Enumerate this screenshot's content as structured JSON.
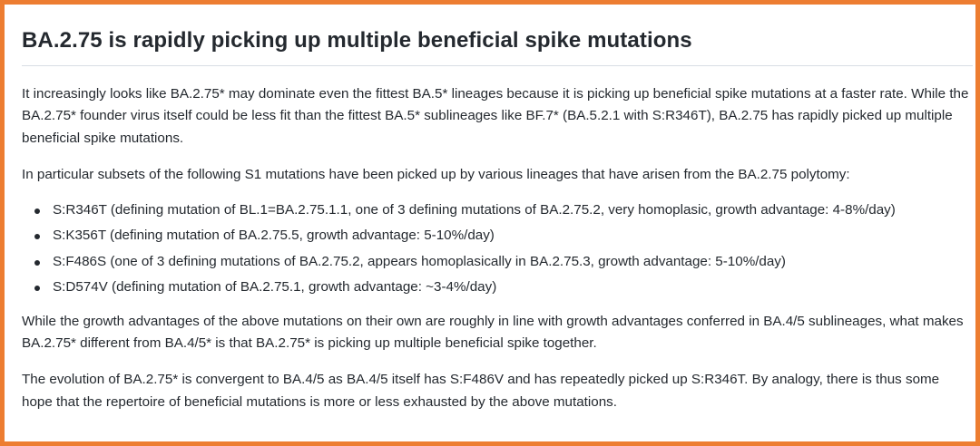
{
  "article": {
    "title": "BA.2.75 is rapidly picking up multiple beneficial spike mutations",
    "paragraph_1": "It increasingly looks like BA.2.75* may dominate even the fittest BA.5* lineages because it is picking up beneficial spike mutations at a faster rate. While the BA.2.75* founder virus itself could be less fit than the fittest BA.5* sublineages like BF.7* (BA.5.2.1 with S:R346T), BA.2.75 has rapidly picked up multiple beneficial spike mutations.",
    "paragraph_2": "In particular subsets of the following S1 mutations have been picked up by various lineages that have arisen from the BA.2.75 polytomy:",
    "mutations": [
      "S:R346T (defining mutation of BL.1=BA.2.75.1.1, one of 3 defining mutations of BA.2.75.2, very homoplasic, growth advantage: 4-8%/day)",
      "S:K356T (defining mutation of BA.2.75.5, growth advantage: 5-10%/day)",
      "S:F486S (one of 3 defining mutations of BA.2.75.2, appears homoplasically in BA.2.75.3, growth advantage: 5-10%/day)",
      "S:D574V (defining mutation of BA.2.75.1, growth advantage: ~3-4%/day)"
    ],
    "paragraph_3": "While the growth advantages of the above mutations on their own are roughly in line with growth advantages conferred in BA.4/5 sublineages, what makes BA.2.75* different from BA.4/5* is that BA.2.75* is picking up multiple beneficial spike together.",
    "paragraph_4": "The evolution of BA.2.75* is convergent to BA.4/5 as BA.4/5 itself has S:F486V and has repeatedly picked up S:R346T. By analogy, there is thus some hope that the repertoire of beneficial mutations is more or less exhausted by the above mutations."
  }
}
